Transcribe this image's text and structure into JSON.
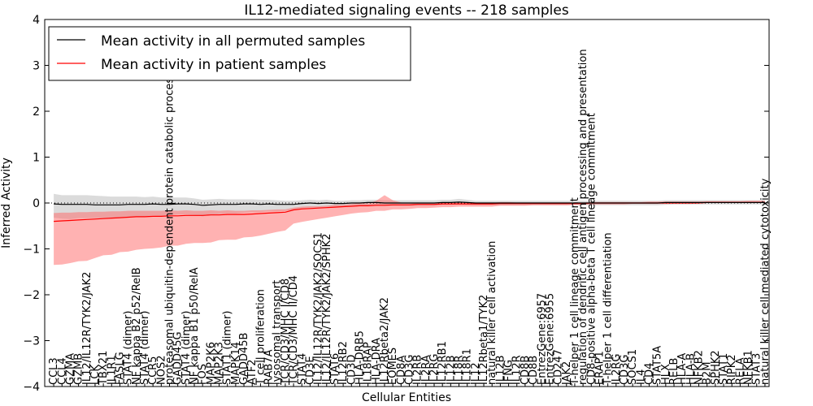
{
  "chart_data": {
    "type": "line",
    "title": "IL12-mediated signaling events -- 218 samples",
    "xlabel": "Cellular Entities",
    "ylabel": "Inferred Activity",
    "ylim": [
      -4,
      4
    ],
    "yticks": [
      -4,
      -3,
      -2,
      -1,
      0,
      1,
      2,
      3,
      4
    ],
    "grid": false,
    "legend_position": "top-left",
    "categories": [
      "CCL3",
      "CCL4",
      "GZMA",
      "GZMB",
      "IL12/IL12R/TYK2/JAK2",
      "LCK",
      "TBX21",
      "IL1R1",
      "FASLG",
      "STAT4 (dimer)",
      "NF kappa B2 p52/RelB",
      "STAT4 (dimer)",
      "CCR5",
      "NOS2",
      "proteasomal ubiquitin-dependent protein catabolic process",
      "GADD45G",
      "STAT4 (dimer)",
      "NF kappa B1 p50/RelA",
      "FOS",
      "MAP2K6",
      "MAP2K3",
      "STAT1 (dimer)",
      "MAPK14",
      "GADD45B",
      "ATF2",
      "T cell proliferation",
      "RAB7A",
      "lysosomal transport",
      "TCR/CD3/MHC I/CD8",
      "TCR/CD3/MHC II/CD4",
      "STAT4",
      "CD3E",
      "IL12/IL12R/TYK2/JAK2/SOCS1",
      "IL12/IL12R/TYK2/JAK2/SPHK2",
      "STAT6",
      "IL12RB2",
      "CD3D",
      "HLA-DRB5",
      "IL18RAP",
      "HLA-DRA",
      "IL12Rbeta2/JAK2",
      "EOMES",
      "CD8A",
      "CD3G",
      "IL2RB",
      "IL2RA",
      "IL2RG",
      "IL12RB1",
      "IL12B",
      "IL18R",
      "IL18R1",
      "IL12",
      "IL12Rbeta1/TYK2",
      "natural killer cell activation",
      "IL12B",
      "IFNG",
      "IL12R",
      "CD8B",
      "CD8B",
      "EntrezGene:6957",
      "EntrezGene:6955",
      "CD247",
      "JAK2",
      "T-helper 1 cell lineage commitment",
      "regulation of dendritic cell antigen processing and presentation",
      "CD8-positive alpha-beta T cell lineage commitment",
      "ERAP1",
      "T-helper 1 cell differentiation",
      "IL2RG",
      "CD3G",
      "SOCS1",
      "IL4",
      "CD4",
      "STAT5A",
      "HLX",
      "RELB",
      "HLA-A",
      "HLA-B",
      "NFKB2",
      "B2M",
      "SPHK2",
      "STAT1",
      "RIPK2",
      "RELA",
      "NFKB1",
      "STAT3",
      "natural killer cell mediated cytotoxicity"
    ],
    "series": [
      {
        "name": "Mean activity in all permuted samples",
        "color": "#000000",
        "values": [
          -0.02,
          -0.03,
          -0.03,
          -0.03,
          -0.03,
          -0.04,
          -0.04,
          -0.04,
          -0.04,
          -0.03,
          -0.03,
          -0.03,
          -0.02,
          -0.03,
          -0.03,
          -0.02,
          -0.02,
          -0.03,
          -0.05,
          -0.04,
          -0.03,
          -0.03,
          -0.03,
          -0.02,
          -0.02,
          -0.03,
          -0.02,
          -0.03,
          -0.03,
          -0.03,
          -0.01,
          0.0,
          -0.01,
          0.0,
          -0.01,
          -0.01,
          0.0,
          0.0,
          0.01,
          0.01,
          0.0,
          0.0,
          0.0,
          0.0,
          0.0,
          0.0,
          0.0,
          0.01,
          0.01,
          0.02,
          0.01,
          0.0,
          0.0,
          0.0,
          0.0,
          0.0,
          0.0,
          0.0,
          0.0,
          0.0,
          0.0,
          0.0,
          0.0,
          0.0,
          0.0,
          0.0,
          0.0,
          0.0,
          0.0,
          0.0,
          0.0,
          0.0,
          0.0,
          0.0,
          0.01,
          0.01,
          0.01,
          0.01,
          0.01,
          0.01,
          0.01,
          0.01,
          0.01,
          0.01,
          0.01,
          0.01,
          0.01
        ],
        "band": {
          "lower": [
            -0.3,
            -0.31,
            -0.32,
            -0.3,
            -0.3,
            -0.29,
            -0.29,
            -0.28,
            -0.28,
            -0.27,
            -0.27,
            -0.26,
            -0.25,
            -0.25,
            -0.24,
            -0.23,
            -0.23,
            -0.23,
            -0.24,
            -0.22,
            -0.21,
            -0.2,
            -0.2,
            -0.19,
            -0.18,
            -0.17,
            -0.16,
            -0.15,
            -0.14,
            -0.12,
            -0.11,
            -0.1,
            -0.09,
            -0.09,
            -0.08,
            -0.08,
            -0.08,
            -0.07,
            -0.07,
            -0.07,
            -0.06,
            -0.06,
            -0.06,
            -0.06,
            -0.06,
            -0.06,
            -0.06,
            -0.05,
            -0.05,
            -0.05,
            -0.05,
            -0.05,
            -0.05,
            -0.05,
            -0.05,
            -0.05,
            -0.05,
            -0.05,
            -0.05,
            -0.05,
            -0.05,
            -0.05,
            -0.05,
            -0.05,
            -0.05,
            -0.05,
            -0.05,
            -0.05,
            -0.05,
            -0.05,
            -0.05,
            -0.05,
            -0.05,
            -0.05,
            -0.05,
            -0.04,
            -0.04,
            -0.04,
            -0.04,
            -0.04,
            -0.04,
            -0.04,
            -0.04,
            -0.04,
            -0.04,
            -0.04,
            -0.04
          ],
          "upper": [
            0.22,
            0.2,
            0.2,
            0.2,
            0.2,
            0.2,
            0.19,
            0.18,
            0.18,
            0.17,
            0.17,
            0.16,
            0.16,
            0.15,
            0.15,
            0.14,
            0.14,
            0.13,
            0.12,
            0.12,
            0.12,
            0.11,
            0.11,
            0.1,
            0.1,
            0.1,
            0.09,
            0.09,
            0.08,
            0.08,
            0.07,
            0.07,
            0.07,
            0.07,
            0.06,
            0.06,
            0.06,
            0.06,
            0.06,
            0.06,
            0.06,
            0.06,
            0.06,
            0.06,
            0.06,
            0.06,
            0.06,
            0.06,
            0.06,
            0.07,
            0.06,
            0.05,
            0.05,
            0.05,
            0.05,
            0.05,
            0.05,
            0.05,
            0.05,
            0.05,
            0.05,
            0.05,
            0.05,
            0.05,
            0.05,
            0.05,
            0.05,
            0.05,
            0.05,
            0.05,
            0.05,
            0.05,
            0.05,
            0.05,
            0.05,
            0.05,
            0.05,
            0.05,
            0.05,
            0.05,
            0.05,
            0.05,
            0.05,
            0.05,
            0.05,
            0.05,
            0.05
          ]
        }
      },
      {
        "name": "Mean activity in patient samples",
        "color": "#ff0000",
        "values": [
          -0.4,
          -0.39,
          -0.38,
          -0.37,
          -0.36,
          -0.35,
          -0.34,
          -0.33,
          -0.32,
          -0.31,
          -0.3,
          -0.3,
          -0.29,
          -0.29,
          -0.28,
          -0.28,
          -0.27,
          -0.27,
          -0.27,
          -0.26,
          -0.26,
          -0.25,
          -0.25,
          -0.25,
          -0.24,
          -0.23,
          -0.22,
          -0.21,
          -0.2,
          -0.15,
          -0.13,
          -0.12,
          -0.11,
          -0.1,
          -0.09,
          -0.08,
          -0.07,
          -0.06,
          -0.06,
          -0.05,
          -0.05,
          -0.04,
          -0.04,
          -0.04,
          -0.03,
          -0.03,
          -0.03,
          -0.02,
          -0.02,
          -0.02,
          -0.02,
          -0.02,
          -0.02,
          -0.02,
          -0.01,
          -0.01,
          -0.01,
          -0.01,
          -0.01,
          -0.01,
          -0.01,
          -0.01,
          -0.01,
          -0.01,
          -0.01,
          0.0,
          0.0,
          0.0,
          0.0,
          0.0,
          0.0,
          0.0,
          0.0,
          0.0,
          0.0,
          0.0,
          0.0,
          0.0,
          0.0,
          0.01,
          0.01,
          0.01,
          0.01,
          0.01,
          0.01,
          0.01,
          0.01
        ],
        "band": {
          "lower": [
            -0.95,
            -0.95,
            -0.93,
            -0.9,
            -0.9,
            -0.85,
            -0.8,
            -0.8,
            -0.75,
            -0.75,
            -0.72,
            -0.7,
            -0.7,
            -0.68,
            -0.65,
            -0.65,
            -0.62,
            -0.6,
            -0.6,
            -0.6,
            -0.55,
            -0.55,
            -0.55,
            -0.5,
            -0.5,
            -0.48,
            -0.45,
            -0.42,
            -0.4,
            -0.3,
            -0.28,
            -0.26,
            -0.24,
            -0.22,
            -0.2,
            -0.18,
            -0.16,
            -0.15,
            -0.14,
            -0.12,
            -0.12,
            -0.1,
            -0.1,
            -0.09,
            -0.08,
            -0.08,
            -0.07,
            -0.07,
            -0.07,
            -0.06,
            -0.06,
            -0.06,
            -0.06,
            -0.06,
            -0.05,
            -0.05,
            -0.05,
            -0.05,
            -0.04,
            -0.04,
            -0.04,
            -0.04,
            -0.04,
            -0.03,
            -0.03,
            -0.03,
            -0.03,
            -0.03,
            -0.03,
            -0.03,
            -0.02,
            -0.02,
            -0.02,
            -0.02,
            -0.02,
            -0.02,
            -0.02,
            -0.02,
            -0.01,
            -0.01,
            -0.01,
            -0.01,
            -0.01,
            -0.01,
            -0.01,
            -0.01,
            -0.01
          ],
          "upper": [
            0.18,
            0.18,
            0.17,
            0.17,
            0.16,
            0.16,
            0.15,
            0.15,
            0.14,
            0.14,
            0.13,
            0.13,
            0.12,
            0.12,
            0.12,
            0.11,
            0.11,
            0.1,
            0.1,
            0.1,
            0.09,
            0.09,
            0.08,
            0.08,
            0.08,
            0.07,
            0.07,
            0.07,
            0.06,
            0.05,
            0.05,
            0.05,
            0.04,
            0.04,
            0.05,
            0.04,
            0.05,
            0.06,
            0.05,
            0.1,
            0.22,
            0.1,
            0.05,
            0.04,
            0.04,
            0.03,
            0.03,
            0.03,
            0.03,
            0.03,
            0.03,
            0.03,
            0.02,
            0.02,
            0.03,
            0.03,
            0.02,
            0.02,
            0.02,
            0.02,
            0.02,
            0.02,
            0.02,
            0.02,
            0.02,
            0.02,
            0.02,
            0.02,
            0.02,
            0.02,
            0.02,
            0.02,
            0.03,
            0.03,
            0.03,
            0.03,
            0.03,
            0.03,
            0.03,
            0.03,
            0.03,
            0.03,
            0.03,
            0.03,
            0.04,
            0.04,
            0.04
          ]
        }
      }
    ],
    "reference_line": 0
  }
}
